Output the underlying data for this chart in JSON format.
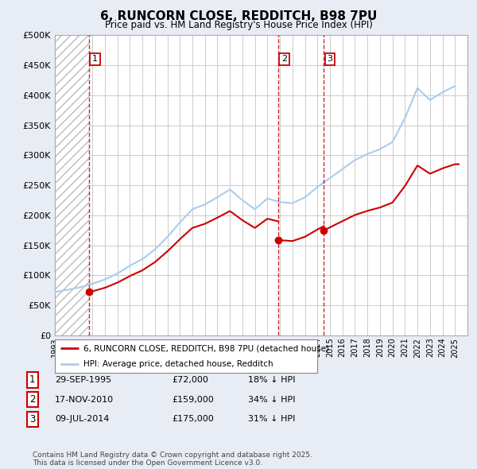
{
  "title": "6, RUNCORN CLOSE, REDDITCH, B98 7PU",
  "subtitle": "Price paid vs. HM Land Registry's House Price Index (HPI)",
  "legend_house": "6, RUNCORN CLOSE, REDDITCH, B98 7PU (detached house)",
  "legend_hpi": "HPI: Average price, detached house, Redditch",
  "transactions": [
    {
      "num": 1,
      "date": "29-SEP-1995",
      "price": 72000,
      "hpi_diff": "18% ↓ HPI",
      "year": 1995.75
    },
    {
      "num": 2,
      "date": "17-NOV-2010",
      "price": 159000,
      "hpi_diff": "34% ↓ HPI",
      "year": 2010.88
    },
    {
      "num": 3,
      "date": "09-JUL-2014",
      "price": 175000,
      "hpi_diff": "31% ↓ HPI",
      "year": 2014.52
    }
  ],
  "footnote": "Contains HM Land Registry data © Crown copyright and database right 2025.\nThis data is licensed under the Open Government Licence v3.0.",
  "ylim": [
    0,
    500000
  ],
  "yticks": [
    0,
    50000,
    100000,
    150000,
    200000,
    250000,
    300000,
    350000,
    400000,
    450000,
    500000
  ],
  "bg_color": "#e8ecf5",
  "plot_bg": "#ffffff",
  "grid_color": "#cccccc",
  "house_line_color": "#cc0000",
  "hpi_line_color": "#aaccee",
  "vline_color": "#cc0000",
  "marker_color": "#cc0000",
  "xmin": 1993,
  "xmax": 2026,
  "hpi_years": [
    1993,
    1994,
    1995,
    1996,
    1997,
    1998,
    1999,
    2000,
    2001,
    2002,
    2003,
    2004,
    2005,
    2006,
    2007,
    2008,
    2009,
    2010,
    2011,
    2012,
    2013,
    2014,
    2015,
    2016,
    2017,
    2018,
    2019,
    2020,
    2021,
    2022,
    2023,
    2024,
    2025
  ],
  "hpi_values": [
    72000,
    76000,
    80000,
    86000,
    93000,
    103000,
    116000,
    127000,
    143000,
    164000,
    188000,
    210000,
    218000,
    230000,
    243000,
    225000,
    210000,
    228000,
    222000,
    220000,
    230000,
    247000,
    262000,
    277000,
    292000,
    302000,
    310000,
    322000,
    362000,
    412000,
    392000,
    405000,
    415000
  ]
}
